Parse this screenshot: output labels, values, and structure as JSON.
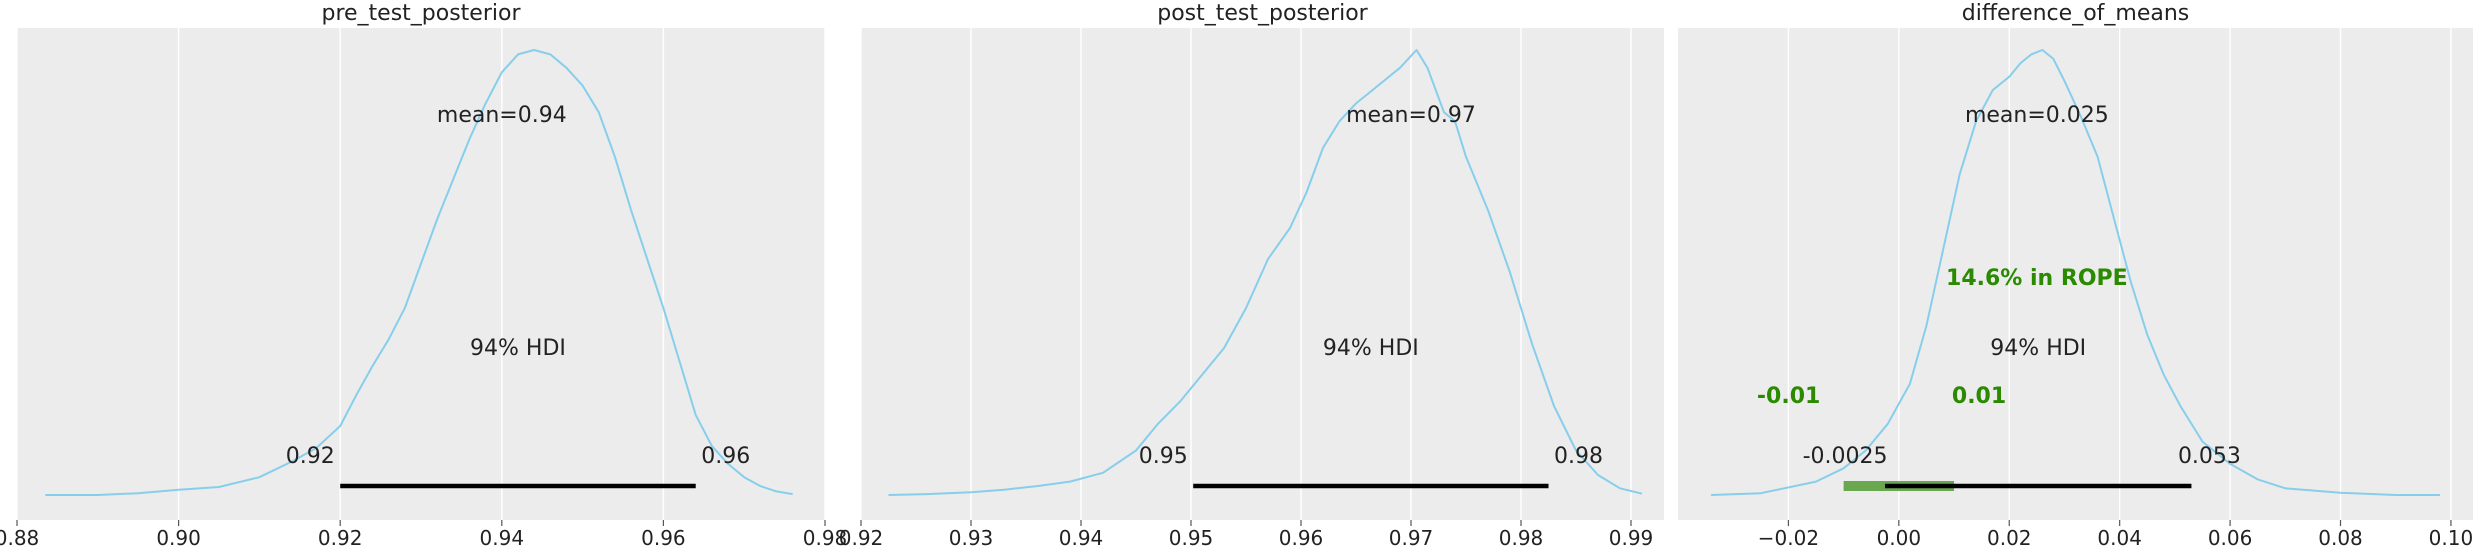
{
  "chart_data": [
    {
      "type": "area",
      "title": "pre_test_posterior",
      "xlim": [
        0.88,
        0.98
      ],
      "xticks": [
        0.88,
        0.9,
        0.92,
        0.94,
        0.96,
        0.98
      ],
      "xtick_labels": [
        "0.88",
        "0.90",
        "0.92",
        "0.94",
        "0.96",
        "0.98"
      ],
      "grid": true,
      "density_color": "#87ceeb",
      "curve": {
        "x": [
          0.8835,
          0.89,
          0.895,
          0.9,
          0.905,
          0.91,
          0.914,
          0.917,
          0.92,
          0.922,
          0.924,
          0.926,
          0.928,
          0.93,
          0.932,
          0.934,
          0.936,
          0.938,
          0.94,
          0.942,
          0.944,
          0.946,
          0.948,
          0.95,
          0.952,
          0.954,
          0.956,
          0.958,
          0.96,
          0.962,
          0.964,
          0.966,
          0.968,
          0.97,
          0.972,
          0.974,
          0.976
        ],
        "density": [
          0.0,
          0.0,
          0.004,
          0.012,
          0.018,
          0.04,
          0.075,
          0.105,
          0.155,
          0.225,
          0.29,
          0.35,
          0.42,
          0.52,
          0.62,
          0.71,
          0.8,
          0.88,
          0.95,
          0.99,
          1.0,
          0.99,
          0.96,
          0.92,
          0.86,
          0.76,
          0.64,
          0.53,
          0.42,
          0.3,
          0.18,
          0.11,
          0.07,
          0.04,
          0.02,
          0.008,
          0.002
        ]
      },
      "mean": 0.94,
      "mean_label": "mean=0.94",
      "hdi_label": "94% HDI",
      "hdi": [
        0.92,
        0.964
      ],
      "hdi_low_label": "0.92",
      "hdi_high_label": "0.96"
    },
    {
      "type": "area",
      "title": "post_test_posterior",
      "xlim": [
        0.92,
        0.993
      ],
      "xticks": [
        0.92,
        0.93,
        0.94,
        0.95,
        0.96,
        0.97,
        0.98,
        0.99
      ],
      "xtick_labels": [
        "0.92",
        "0.93",
        "0.94",
        "0.95",
        "0.96",
        "0.97",
        "0.98",
        "0.99"
      ],
      "grid": true,
      "density_color": "#87ceeb",
      "curve": {
        "x": [
          0.9225,
          0.926,
          0.93,
          0.933,
          0.936,
          0.939,
          0.942,
          0.945,
          0.947,
          0.949,
          0.951,
          0.953,
          0.955,
          0.957,
          0.959,
          0.9605,
          0.962,
          0.9635,
          0.965,
          0.9665,
          0.968,
          0.969,
          0.9705,
          0.9715,
          0.973,
          0.974,
          0.975,
          0.977,
          0.979,
          0.981,
          0.983,
          0.985,
          0.987,
          0.989,
          0.991
        ],
        "density": [
          0.0,
          0.002,
          0.006,
          0.012,
          0.02,
          0.03,
          0.05,
          0.1,
          0.16,
          0.21,
          0.27,
          0.33,
          0.42,
          0.53,
          0.6,
          0.68,
          0.78,
          0.84,
          0.88,
          0.91,
          0.94,
          0.96,
          1.0,
          0.96,
          0.86,
          0.84,
          0.76,
          0.64,
          0.5,
          0.34,
          0.2,
          0.1,
          0.045,
          0.015,
          0.003
        ]
      },
      "mean": 0.97,
      "mean_label": "mean=0.97",
      "hdi_label": "94% HDI",
      "hdi": [
        0.9502,
        0.9825
      ],
      "hdi_low_label": "0.95",
      "hdi_high_label": "0.98"
    },
    {
      "type": "area",
      "title": "difference_of_means",
      "xlim": [
        -0.04,
        0.104
      ],
      "xticks": [
        -0.02,
        0.0,
        0.02,
        0.04,
        0.06,
        0.08,
        0.1
      ],
      "xtick_labels": [
        "−0.02",
        "0.00",
        "0.02",
        "0.04",
        "0.06",
        "0.08",
        "0.10"
      ],
      "grid": true,
      "density_color": "#87ceeb",
      "curve": {
        "x": [
          -0.034,
          -0.025,
          -0.015,
          -0.01,
          -0.006,
          -0.002,
          0.002,
          0.005,
          0.008,
          0.011,
          0.014,
          0.017,
          0.02,
          0.022,
          0.024,
          0.026,
          0.028,
          0.03,
          0.033,
          0.036,
          0.039,
          0.042,
          0.045,
          0.048,
          0.051,
          0.055,
          0.06,
          0.065,
          0.07,
          0.08,
          0.09,
          0.098
        ],
        "density": [
          0.0,
          0.004,
          0.03,
          0.06,
          0.1,
          0.16,
          0.25,
          0.38,
          0.55,
          0.72,
          0.84,
          0.91,
          0.94,
          0.97,
          0.99,
          1.0,
          0.98,
          0.93,
          0.85,
          0.76,
          0.62,
          0.48,
          0.36,
          0.27,
          0.2,
          0.12,
          0.07,
          0.035,
          0.015,
          0.005,
          0.0,
          0.0
        ]
      },
      "mean": 0.025,
      "mean_label": "mean=0.025",
      "hdi_label": "94% HDI",
      "hdi": [
        -0.0025,
        0.053
      ],
      "hdi_low_label": "-0.0025",
      "hdi_high_label": "0.053",
      "rope": [
        -0.01,
        0.01
      ],
      "rope_label": "14.6% in ROPE",
      "rope_low_label": "-0.01",
      "rope_high_label": "0.01",
      "rope_color": "#2a8a00"
    }
  ]
}
